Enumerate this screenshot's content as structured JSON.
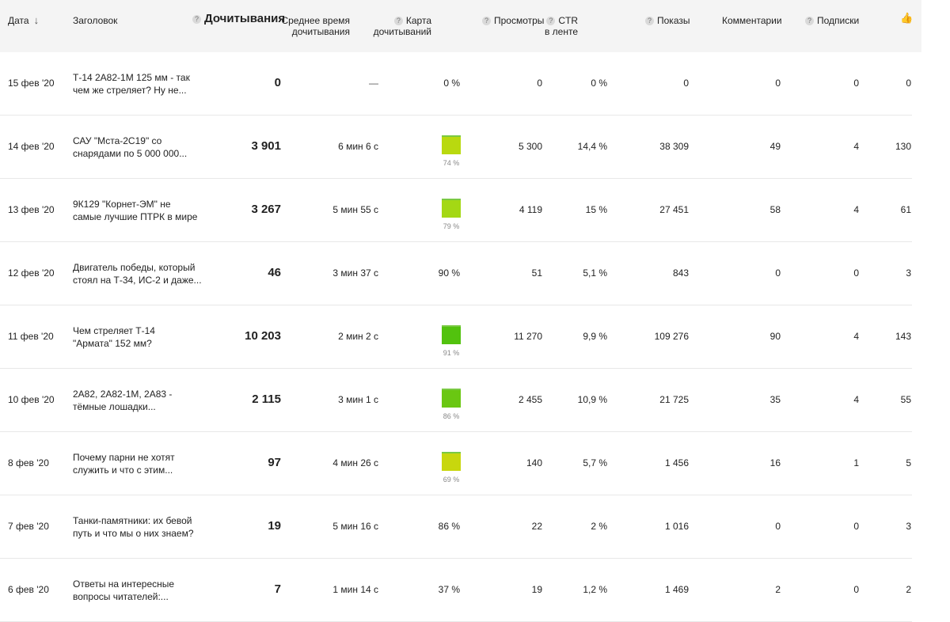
{
  "header": {
    "date": "Дата",
    "title": "Заголовок",
    "reads": "Дочитывания",
    "avg_time_1": "Среднее время",
    "avg_time_2": "дочитывания",
    "map_1": "Карта",
    "map_2": "дочитываний",
    "views": "Просмотры",
    "ctr_1": "CTR",
    "ctr_2": "в ленте",
    "shows": "Показы",
    "comments": "Комментарии",
    "subs": "Подписки",
    "help": "?",
    "sort_arrow": "↓",
    "likes_icon": "thumbs-up-icon",
    "likes_glyph": "👍"
  },
  "colors": {
    "header_bg": "#f4f4f4",
    "row_divider": "#e8e8e8"
  },
  "rows": [
    {
      "date": "15 фев '20",
      "title_1": "Т-14 2А82-1М 125 мм - так",
      "title_2": "чем же стреляет? Ну не...",
      "reads": "0",
      "time": "—",
      "map": "0 %",
      "views": "0",
      "ctr": "0 %",
      "shows": "0",
      "comments": "0",
      "subs": "0",
      "likes": "0"
    },
    {
      "date": "14 фев '20",
      "title_1": "САУ \"Мста-2С19\" со",
      "title_2": "снарядами по 5 000 000...",
      "reads": "3 901",
      "time": "6 мин 6 с",
      "map": "74 %",
      "map_fill": 0.74,
      "map_color": "#b9d90f",
      "views": "5 300",
      "ctr": "14,4 %",
      "shows": "38 309",
      "comments": "49",
      "subs": "4",
      "likes": "130"
    },
    {
      "date": "13 фев '20",
      "title_1": "9К129 \"Корнет-ЭМ\" не",
      "title_2": "самые лучшие ПТРК в мире",
      "reads": "3 267",
      "time": "5 мин 55 с",
      "map": "79 %",
      "map_fill": 0.79,
      "map_color": "#a4d814",
      "views": "4 119",
      "ctr": "15 %",
      "shows": "27 451",
      "comments": "58",
      "subs": "4",
      "likes": "61"
    },
    {
      "date": "12 фев '20",
      "title_1": "Двигатель победы, который",
      "title_2": "стоял на Т-34, ИС-2 и даже...",
      "reads": "46",
      "time": "3 мин 37 с",
      "map": "90 %",
      "views": "51",
      "ctr": "5,1 %",
      "shows": "843",
      "comments": "0",
      "subs": "0",
      "likes": "3"
    },
    {
      "date": "11 фев '20",
      "title_1": "Чем стреляет Т-14",
      "title_2": "\"Армата\" 152 мм?",
      "reads": "10 203",
      "time": "2 мин 2 с",
      "map": "91 %",
      "map_fill": 0.91,
      "map_color": "#52c20e",
      "views": "11 270",
      "ctr": "9,9 %",
      "shows": "109 276",
      "comments": "90",
      "subs": "4",
      "likes": "143"
    },
    {
      "date": "10 фев '20",
      "title_1": "2А82, 2А82-1М, 2А83 -",
      "title_2": "тёмные лошадки...",
      "reads": "2 115",
      "time": "3 мин 1 с",
      "map": "86 %",
      "map_fill": 0.86,
      "map_color": "#6ac712",
      "views": "2 455",
      "ctr": "10,9 %",
      "shows": "21 725",
      "comments": "35",
      "subs": "4",
      "likes": "55"
    },
    {
      "date": "8 фев '20",
      "title_1": "Почему парни не хотят",
      "title_2": "служить и что с этим...",
      "reads": "97",
      "time": "4 мин 26 с",
      "map": "69 %",
      "map_fill": 0.69,
      "map_color": "#c8d70d",
      "views": "140",
      "ctr": "5,7 %",
      "shows": "1 456",
      "comments": "16",
      "subs": "1",
      "likes": "5"
    },
    {
      "date": "7 фев '20",
      "title_1": "Танки-памятники: их бевой",
      "title_2": "путь и что мы о них знаем?",
      "reads": "19",
      "time": "5 мин 16 с",
      "map": "86 %",
      "views": "22",
      "ctr": "2 %",
      "shows": "1 016",
      "comments": "0",
      "subs": "0",
      "likes": "3"
    },
    {
      "date": "6 фев '20",
      "title_1": "Ответы на интересные",
      "title_2": "вопросы читателей:...",
      "reads": "7",
      "time": "1 мин 14 с",
      "map": "37 %",
      "views": "19",
      "ctr": "1,2 %",
      "shows": "1 469",
      "comments": "2",
      "subs": "0",
      "likes": "2"
    }
  ]
}
